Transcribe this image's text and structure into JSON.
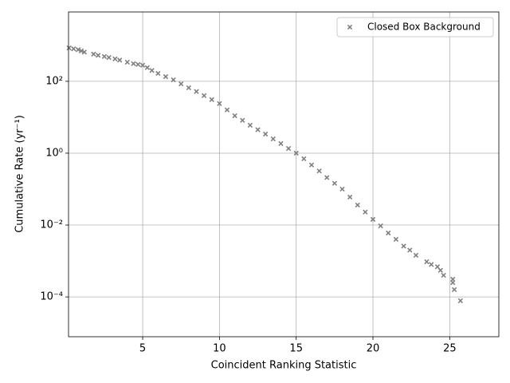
{
  "chart_data": {
    "type": "scatter",
    "xlabel": "Coincident Ranking Statistic",
    "ylabel": "Cumulative Rate (yr⁻¹)",
    "xlim": [
      0.17,
      28.2
    ],
    "ylim": [
      7.8e-06,
      8500
    ],
    "xticks": [
      5,
      10,
      15,
      20,
      25
    ],
    "yticks": [
      {
        "value": 100,
        "label": "10²"
      },
      {
        "value": 1,
        "label": "10⁰"
      },
      {
        "value": 0.01,
        "label": "10⁻²"
      },
      {
        "value": 0.0001,
        "label": "10⁻⁴"
      }
    ],
    "log_y": true,
    "grid": true,
    "legend": "upper right",
    "series": [
      {
        "name": "Closed Box Background",
        "color": "#808080",
        "x": [
          0.2,
          0.5,
          0.8,
          1.0,
          1.2,
          1.8,
          2.1,
          2.5,
          2.8,
          3.2,
          3.5,
          4.0,
          4.4,
          4.7,
          5.0,
          5.3,
          5.6,
          6.0,
          6.5,
          7.0,
          7.5,
          8.0,
          8.5,
          9.0,
          9.5,
          10.0,
          10.5,
          11.0,
          11.5,
          12.0,
          12.5,
          13.0,
          13.5,
          14.0,
          14.5,
          15.0,
          15.5,
          16.0,
          16.5,
          17.0,
          17.5,
          18.0,
          18.5,
          19.0,
          19.5,
          20.0,
          20.5,
          21.0,
          21.5,
          22.0,
          22.4,
          22.8,
          23.5,
          23.8,
          24.2,
          24.4,
          24.6,
          25.2,
          25.2,
          25.3,
          25.7
        ],
        "values": [
          850,
          800,
          760,
          700,
          650,
          570,
          530,
          490,
          460,
          420,
          390,
          340,
          310,
          295,
          280,
          240,
          200,
          166,
          135,
          110,
          85,
          66,
          52,
          40,
          31,
          24,
          16,
          11,
          8.2,
          6,
          4.5,
          3.4,
          2.5,
          1.85,
          1.35,
          1.0,
          0.7,
          0.47,
          0.32,
          0.21,
          0.145,
          0.1,
          0.06,
          0.036,
          0.023,
          0.0144,
          0.0095,
          0.006,
          0.004,
          0.0026,
          0.002,
          0.00144,
          0.00095,
          0.0008,
          0.00069,
          0.00055,
          0.0004,
          0.00031,
          0.00025,
          0.00016,
          7.8e-05
        ]
      }
    ]
  }
}
